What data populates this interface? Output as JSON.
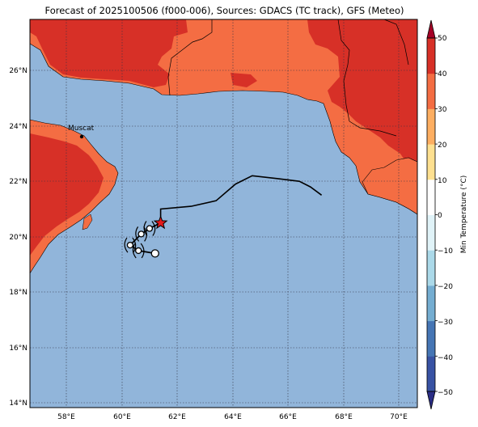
{
  "title": "Forecast of 2025100506 (f000-006), Sources: GDACS (TC track), GFS (Meteo)",
  "city_label": "Muscat",
  "lon_ticks": [
    "58°E",
    "60°E",
    "62°E",
    "64°E",
    "66°E",
    "68°E",
    "70°E"
  ],
  "lat_ticks": [
    "26°N",
    "24°N",
    "22°N",
    "20°N",
    "18°N",
    "16°N",
    "14°N"
  ],
  "colorbar": {
    "label": "Min Temperature (°C)",
    "ticks": [
      "50",
      "40",
      "30",
      "20",
      "10",
      "0",
      "−10",
      "−20",
      "−30",
      "−40",
      "−50"
    ],
    "colors": [
      "#2a2d85",
      "#3852a3",
      "#4575b4",
      "#74add1",
      "#abd9e9",
      "#e0f3f8",
      "#ffffff",
      "#fee090",
      "#fdae61",
      "#f46d43",
      "#d73027",
      "#a50026"
    ]
  },
  "map_colors": {
    "ocean": "#91b5da",
    "land_20_30": "#f46d43",
    "land_30_40": "#d73027"
  },
  "storm_track": [
    {
      "lon": 67.2,
      "lat": 21.5
    },
    {
      "lon": 66.8,
      "lat": 21.8
    },
    {
      "lon": 66.4,
      "lat": 22.0
    },
    {
      "lon": 65.6,
      "lat": 22.1
    },
    {
      "lon": 64.7,
      "lat": 22.2
    },
    {
      "lon": 64.1,
      "lat": 21.9
    },
    {
      "lon": 63.4,
      "lat": 21.3
    },
    {
      "lon": 62.5,
      "lat": 21.1
    },
    {
      "lon": 61.4,
      "lat": 21.0
    },
    {
      "lon": 61.4,
      "lat": 20.5
    }
  ],
  "storm_current": {
    "lon": 61.4,
    "lat": 20.5
  },
  "storm_forecast": [
    {
      "lon": 61.0,
      "lat": 20.3
    },
    {
      "lon": 60.7,
      "lat": 20.1
    },
    {
      "lon": 60.3,
      "lat": 19.7
    },
    {
      "lon": 60.6,
      "lat": 19.5
    },
    {
      "lon": 61.2,
      "lat": 19.4
    }
  ]
}
